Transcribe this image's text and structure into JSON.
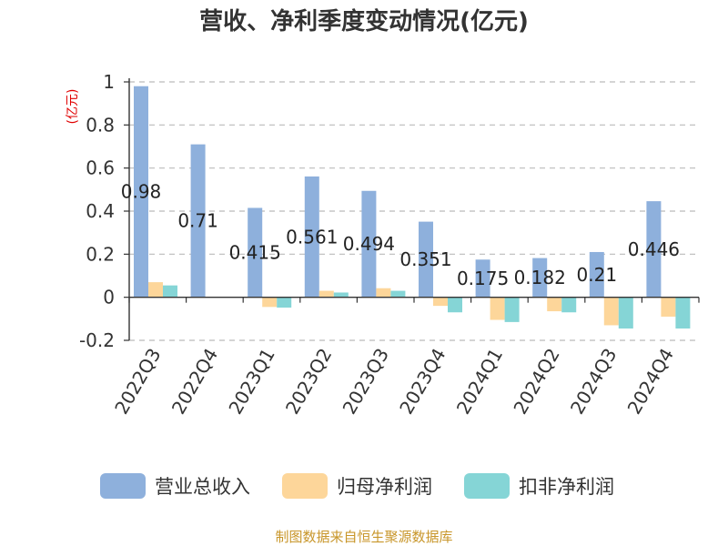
{
  "chart_data": {
    "type": "bar",
    "title": "营收、净利季度变动情况(亿元)",
    "unit_label": "(亿元)",
    "categories": [
      "2022Q3",
      "2022Q4",
      "2023Q1",
      "2023Q2",
      "2023Q3",
      "2023Q4",
      "2024Q1",
      "2024Q2",
      "2024Q3",
      "2024Q4"
    ],
    "series": [
      {
        "name": "营业总收入",
        "color": "#8eb0dc",
        "values": [
          0.98,
          0.71,
          0.415,
          0.561,
          0.494,
          0.351,
          0.175,
          0.182,
          0.21,
          0.446
        ]
      },
      {
        "name": "归母净利润",
        "color": "#fdd69a",
        "values": [
          0.07,
          0.002,
          -0.045,
          0.03,
          0.042,
          -0.04,
          -0.105,
          -0.065,
          -0.13,
          -0.09
        ]
      },
      {
        "name": "扣非净利润",
        "color": "#85d5d6",
        "values": [
          0.055,
          0.001,
          -0.048,
          0.022,
          0.03,
          -0.07,
          -0.115,
          -0.07,
          -0.145,
          -0.145
        ]
      }
    ],
    "data_labels": [
      "0.98",
      "0.71",
      "0.415",
      "0.561",
      "0.494",
      "0.351",
      "0.175",
      "0.182",
      "0.21",
      "0.446"
    ],
    "ylim": [
      -0.2,
      1
    ],
    "yticks": [
      1,
      0.8,
      0.6,
      0.4,
      0.2,
      0,
      -0.2
    ],
    "ytick_labels": [
      "1",
      "0.8",
      "0.6",
      "0.4",
      "0.2",
      "0",
      "-0.2"
    ],
    "grid": true,
    "legend_position": "bottom"
  },
  "source": "制图数据来自恒生聚源数据库"
}
